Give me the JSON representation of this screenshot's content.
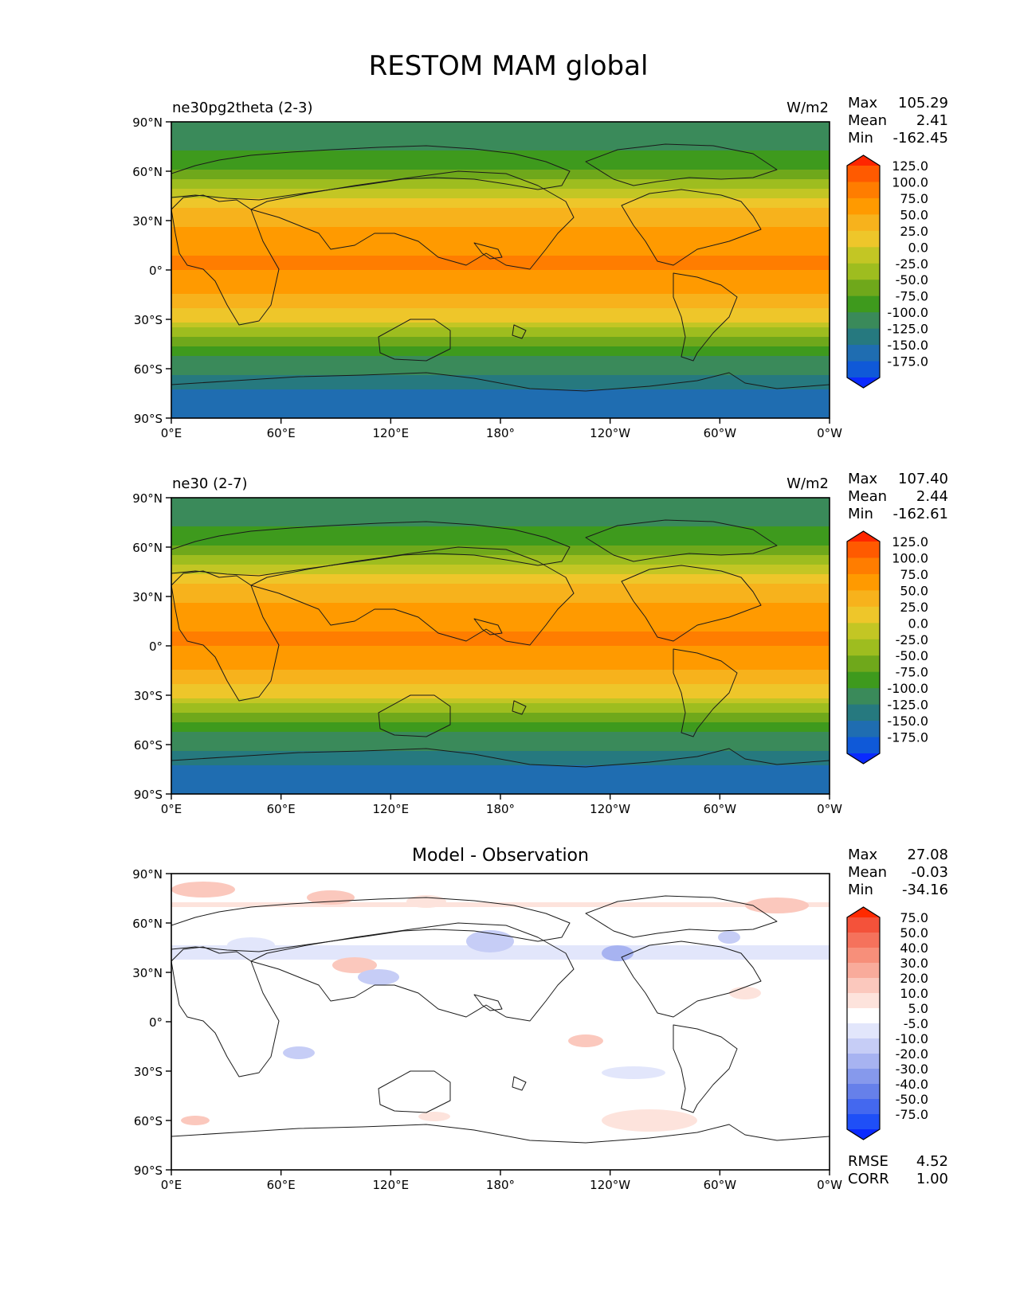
{
  "chart_data": {
    "type": "heatmap",
    "title": "RESTOM MAM global",
    "x_ticks": [
      "0°E",
      "60°E",
      "120°E",
      "180°",
      "120°W",
      "60°W",
      "0°W"
    ],
    "y_ticks": [
      "90°N",
      "60°N",
      "30°N",
      "0°",
      "30°S",
      "60°S",
      "90°S"
    ],
    "xlim": [
      0,
      360
    ],
    "ylim": [
      -90,
      90
    ],
    "panels": [
      {
        "left_title": "ne30pg2theta (2-3)",
        "center_title": "",
        "units": "W/m2",
        "stats": [
          {
            "label": "Max",
            "value": "105.29"
          },
          {
            "label": "Mean",
            "value": "2.41"
          },
          {
            "label": "Min",
            "value": "-162.45"
          }
        ],
        "extra_stats": [],
        "colorbar_levels": [
          "125.0",
          "100.0",
          "75.0",
          "50.0",
          "25.0",
          "0.0",
          "-25.0",
          "-50.0",
          "-75.0",
          "-100.0",
          "-125.0",
          "-150.0",
          "-175.0"
        ],
        "colorbar_colors": [
          "#ff2600",
          "#ff5a00",
          "#ff7d00",
          "#ff9a00",
          "#f7b21c",
          "#eec62a",
          "#c3c624",
          "#9ebd1f",
          "#6fa81b",
          "#3e9a1d",
          "#3a8a5a",
          "#26797f",
          "#1f6db1",
          "#0f59d8",
          "#0a2aff"
        ],
        "zonal_mean": [
          {
            "lat": 90,
            "v": -120
          },
          {
            "lat": 78,
            "v": -110
          },
          {
            "lat": 70,
            "v": -95
          },
          {
            "lat": 60,
            "v": -70
          },
          {
            "lat": 52,
            "v": -40
          },
          {
            "lat": 45,
            "v": -10
          },
          {
            "lat": 38,
            "v": 20
          },
          {
            "lat": 30,
            "v": 45
          },
          {
            "lat": 22,
            "v": 60
          },
          {
            "lat": 15,
            "v": 70
          },
          {
            "lat": 5,
            "v": 80
          },
          {
            "lat": -5,
            "v": 70
          },
          {
            "lat": -12,
            "v": 55
          },
          {
            "lat": -20,
            "v": 35
          },
          {
            "lat": -28,
            "v": 12
          },
          {
            "lat": -35,
            "v": -20
          },
          {
            "lat": -42,
            "v": -55
          },
          {
            "lat": -50,
            "v": -90
          },
          {
            "lat": -58,
            "v": -115
          },
          {
            "lat": -66,
            "v": -130
          },
          {
            "lat": -75,
            "v": -160
          },
          {
            "lat": -90,
            "v": -150
          }
        ]
      },
      {
        "left_title": "ne30 (2-7)",
        "center_title": "",
        "units": "W/m2",
        "stats": [
          {
            "label": "Max",
            "value": "107.40"
          },
          {
            "label": "Mean",
            "value": "2.44"
          },
          {
            "label": "Min",
            "value": "-162.61"
          }
        ],
        "extra_stats": [],
        "colorbar_levels": [
          "125.0",
          "100.0",
          "75.0",
          "50.0",
          "25.0",
          "0.0",
          "-25.0",
          "-50.0",
          "-75.0",
          "-100.0",
          "-125.0",
          "-150.0",
          "-175.0"
        ],
        "colorbar_colors": [
          "#ff2600",
          "#ff5a00",
          "#ff7d00",
          "#ff9a00",
          "#f7b21c",
          "#eec62a",
          "#c3c624",
          "#9ebd1f",
          "#6fa81b",
          "#3e9a1d",
          "#3a8a5a",
          "#26797f",
          "#1f6db1",
          "#0f59d8",
          "#0a2aff"
        ],
        "zonal_mean": [
          {
            "lat": 90,
            "v": -120
          },
          {
            "lat": 78,
            "v": -110
          },
          {
            "lat": 70,
            "v": -95
          },
          {
            "lat": 60,
            "v": -70
          },
          {
            "lat": 52,
            "v": -40
          },
          {
            "lat": 45,
            "v": -10
          },
          {
            "lat": 38,
            "v": 20
          },
          {
            "lat": 30,
            "v": 45
          },
          {
            "lat": 22,
            "v": 60
          },
          {
            "lat": 15,
            "v": 70
          },
          {
            "lat": 5,
            "v": 80
          },
          {
            "lat": -5,
            "v": 72
          },
          {
            "lat": -12,
            "v": 55
          },
          {
            "lat": -20,
            "v": 35
          },
          {
            "lat": -28,
            "v": 12
          },
          {
            "lat": -35,
            "v": -20
          },
          {
            "lat": -42,
            "v": -55
          },
          {
            "lat": -50,
            "v": -90
          },
          {
            "lat": -58,
            "v": -115
          },
          {
            "lat": -66,
            "v": -130
          },
          {
            "lat": -75,
            "v": -160
          },
          {
            "lat": -90,
            "v": -150
          }
        ]
      },
      {
        "left_title": "",
        "center_title": "Model - Observation",
        "units": "",
        "stats": [
          {
            "label": "Max",
            "value": "27.08"
          },
          {
            "label": "Mean",
            "value": "-0.03"
          },
          {
            "label": "Min",
            "value": "-34.16"
          }
        ],
        "extra_stats": [
          {
            "label": "RMSE",
            "value": "4.52"
          },
          {
            "label": "CORR",
            "value": "1.00"
          }
        ],
        "colorbar_levels": [
          "75.0",
          "50.0",
          "40.0",
          "30.0",
          "20.0",
          "10.0",
          "5.0",
          "-5.0",
          "-10.0",
          "-20.0",
          "-30.0",
          "-40.0",
          "-50.0",
          "-75.0"
        ],
        "colorbar_colors": [
          "#ff2a00",
          "#f4523a",
          "#f5725c",
          "#f78f7a",
          "#f9ab9b",
          "#fbc8bd",
          "#fde3dc",
          "#ffffff",
          "#e2e6fb",
          "#c6cdf6",
          "#a7b3f1",
          "#8699ec",
          "#6680ea",
          "#4468ef",
          "#1f4ff7",
          "#0a2aff"
        ],
        "zonal_mean": [
          {
            "lat": 90,
            "v": 0
          },
          {
            "lat": 70,
            "v": 6
          },
          {
            "lat": 55,
            "v": -4
          },
          {
            "lat": 40,
            "v": -6
          },
          {
            "lat": 30,
            "v": 4
          },
          {
            "lat": 15,
            "v": -5
          },
          {
            "lat": 0,
            "v": 0
          },
          {
            "lat": -20,
            "v": 3
          },
          {
            "lat": -40,
            "v": -3
          },
          {
            "lat": -55,
            "v": 4
          },
          {
            "lat": -70,
            "v": 0
          },
          {
            "lat": -90,
            "v": 0
          }
        ]
      }
    ]
  }
}
